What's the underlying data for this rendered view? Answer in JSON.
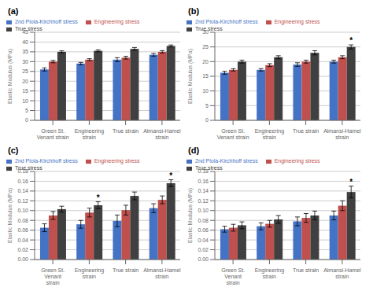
{
  "chart_data": [
    {
      "type": "bar",
      "title": "(a)",
      "ylabel": "Elastic Modulus (MPa)",
      "categories": [
        "Green St. Venant strain",
        "Engineering strain",
        "True strain",
        "Almansi-Hamel strain"
      ],
      "series": [
        {
          "name": "2nd Piola-Kirchhoff stress",
          "color": "#4472C4",
          "values": [
            26.0,
            29.0,
            31.0,
            33.5
          ],
          "errors": [
            0.8,
            0.6,
            1.0,
            0.7
          ]
        },
        {
          "name": "Engineering stress",
          "color": "#C0504D",
          "values": [
            30.0,
            31.0,
            32.0,
            35.0
          ],
          "errors": [
            0.6,
            0.5,
            0.7,
            0.6
          ]
        },
        {
          "name": "True stress",
          "color": "#404040",
          "values": [
            35.0,
            35.5,
            36.5,
            38.0
          ],
          "errors": [
            0.5,
            0.5,
            0.7,
            0.5
          ]
        }
      ],
      "ylim": [
        0,
        45
      ],
      "yticks": [
        0,
        5,
        10,
        15,
        20,
        25,
        30,
        35,
        40,
        45
      ],
      "grid": true,
      "legend": "upper left"
    },
    {
      "type": "bar",
      "title": "(b)",
      "ylabel": "Elastic Modulus (MPa)",
      "categories": [
        "Green St. Venant strain",
        "Engineering strain",
        "True strain",
        "Almansi-Hamel strain"
      ],
      "series": [
        {
          "name": "2nd Piola-Kirchhoff stress",
          "color": "#4472C4",
          "values": [
            16.2,
            17.2,
            19.0,
            20.0
          ],
          "errors": [
            0.5,
            0.4,
            0.6,
            0.5
          ]
        },
        {
          "name": "Engineering stress",
          "color": "#C0504D",
          "values": [
            17.2,
            18.8,
            20.0,
            21.5
          ],
          "errors": [
            0.4,
            0.5,
            0.5,
            0.5
          ]
        },
        {
          "name": "True stress",
          "color": "#404040",
          "values": [
            20.0,
            21.5,
            23.0,
            25.0
          ],
          "errors": [
            0.5,
            0.5,
            0.7,
            0.7
          ]
        }
      ],
      "ylim": [
        0,
        30
      ],
      "yticks": [
        0,
        5,
        10,
        15,
        20,
        25,
        30
      ],
      "grid": true,
      "legend": "upper left",
      "annotations": [
        {
          "text": "*",
          "category": "Almansi-Hamel strain",
          "series": "True stress"
        }
      ]
    },
    {
      "type": "bar",
      "title": "(c)",
      "ylabel": "Elastic Modulus (MPa)",
      "categories": [
        "Green St. Venant\nstrain",
        "Engineering strain",
        "True strain",
        "Almansi-Hamel strain"
      ],
      "series": [
        {
          "name": "2nd Piola-Kirchhoff stress",
          "color": "#4472C4",
          "values": [
            0.065,
            0.072,
            0.079,
            0.105
          ],
          "errors": [
            0.008,
            0.008,
            0.012,
            0.009
          ]
        },
        {
          "name": "Engineering stress",
          "color": "#C0504D",
          "values": [
            0.09,
            0.096,
            0.101,
            0.122
          ],
          "errors": [
            0.008,
            0.009,
            0.01,
            0.008
          ]
        },
        {
          "name": "True stress",
          "color": "#404040",
          "values": [
            0.103,
            0.111,
            0.13,
            0.156
          ],
          "errors": [
            0.006,
            0.007,
            0.008,
            0.007
          ]
        }
      ],
      "ylim": [
        0,
        0.18
      ],
      "yticks": [
        {
          "value": 0,
          "label": "0.00"
        },
        0.02,
        0.04,
        0.06,
        0.08,
        {
          "value": 0.1,
          "label": "0.10"
        },
        0.12,
        0.14,
        0.16,
        0.18
      ],
      "grid": true,
      "legend": "upper left",
      "annotations": [
        {
          "text": "*",
          "category": "Engineering strain",
          "series": "True stress"
        },
        {
          "text": "*",
          "category": "Almansi-Hamel strain",
          "series": "True stress"
        }
      ]
    },
    {
      "type": "bar",
      "title": "(d)",
      "ylabel": "Elastic Modulus (MPa)",
      "categories": [
        "Green St. Venant\nstrain",
        "Engineering strain",
        "True strain",
        "Almansi-Hamel strain"
      ],
      "series": [
        {
          "name": "2nd Piola-Kirchhoff stress",
          "color": "#4472C4",
          "values": [
            0.062,
            0.068,
            0.078,
            0.09
          ],
          "errors": [
            0.006,
            0.007,
            0.009,
            0.009
          ]
        },
        {
          "name": "Engineering stress",
          "color": "#C0504D",
          "values": [
            0.065,
            0.073,
            0.085,
            0.11
          ],
          "errors": [
            0.007,
            0.007,
            0.009,
            0.01
          ]
        },
        {
          "name": "True stress",
          "color": "#404040",
          "values": [
            0.07,
            0.082,
            0.09,
            0.138
          ],
          "errors": [
            0.007,
            0.008,
            0.009,
            0.012
          ]
        }
      ],
      "ylim": [
        0,
        0.18
      ],
      "yticks": [
        {
          "value": 0,
          "label": "0.00"
        },
        0.02,
        0.04,
        0.06,
        0.08,
        {
          "value": 0.1,
          "label": "0.10"
        },
        0.12,
        0.14,
        0.16,
        0.18
      ],
      "grid": true,
      "legend": "upper left",
      "annotations": [
        {
          "text": "*",
          "category": "Almansi-Hamel strain",
          "series": "True stress"
        }
      ]
    }
  ]
}
